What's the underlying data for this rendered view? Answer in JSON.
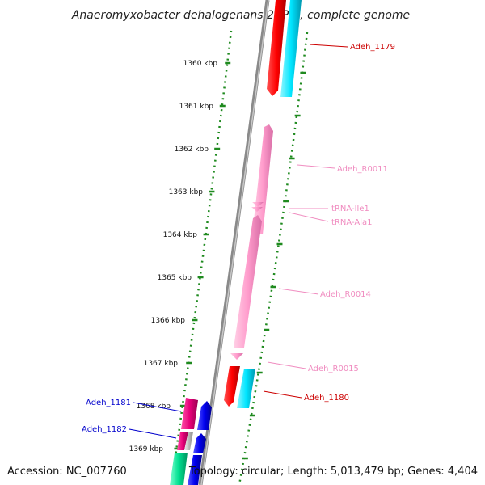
{
  "title": "Anaeromyxobacter dehalogenans 2CP-C, complete genome",
  "footer": {
    "accession": "Accession: NC_007760",
    "topology": "Topology: circular; Length: 5,013,479 bp; Genes: 4,404"
  },
  "colors": {
    "backbone": "#8a8a8a",
    "ruler": "#1f8a1f",
    "cds_red": "#ff0000",
    "cds_cyan": "#00e5ff",
    "rna_pink": "#ff9ccc",
    "cds_magenta": "#e8007a",
    "cds_blue": "#0000ee",
    "cds_green": "#00e090",
    "cds_gray": "#bbbbbb",
    "label_red": "#cc0000",
    "label_pink": "#f08cc0",
    "label_blue": "#0000cc"
  },
  "ticks": [
    {
      "label": "1360 kbp",
      "kbp": 1360
    },
    {
      "label": "1361 kbp",
      "kbp": 1361
    },
    {
      "label": "1362 kbp",
      "kbp": 1362
    },
    {
      "label": "1363 kbp",
      "kbp": 1363
    },
    {
      "label": "1364 kbp",
      "kbp": 1364
    },
    {
      "label": "1365 kbp",
      "kbp": 1365
    },
    {
      "label": "1366 kbp",
      "kbp": 1366
    },
    {
      "label": "1367 kbp",
      "kbp": 1367
    },
    {
      "label": "1368 kbp",
      "kbp": 1368
    },
    {
      "label": "1369 kbp",
      "kbp": 1369
    }
  ],
  "labels": {
    "adeh_1179": "Adeh_1179",
    "adeh_r0011": "Adeh_R0011",
    "trna_ile1": "tRNA-Ile1",
    "trna_ala1": "tRNA-Ala1",
    "adeh_r0014": "Adeh_R0014",
    "adeh_r0015": "Adeh_R0015",
    "adeh_1180": "Adeh_1180",
    "adeh_1181": "Adeh_1181",
    "adeh_1182": "Adeh_1182"
  }
}
